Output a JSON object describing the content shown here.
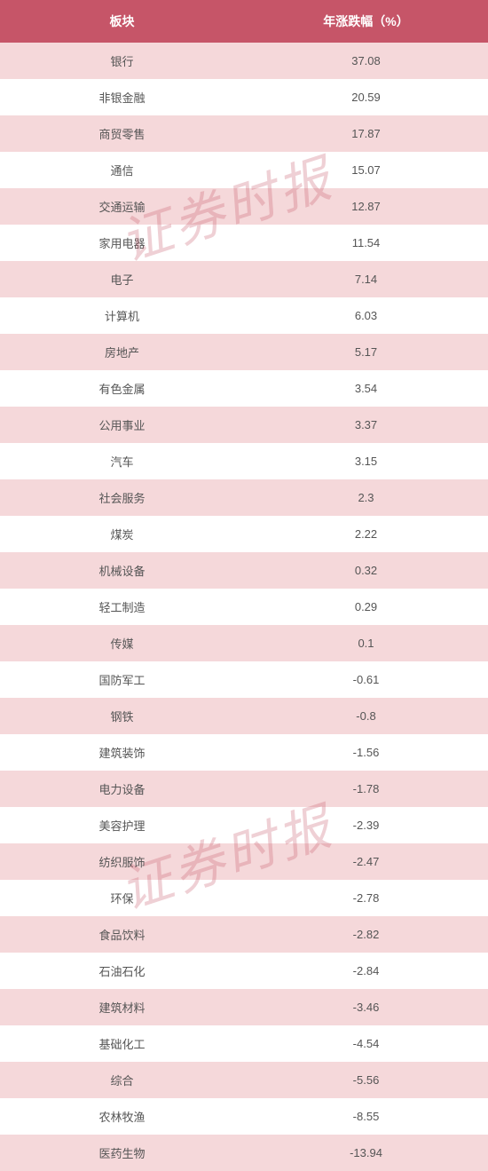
{
  "table": {
    "columns": [
      "板块",
      "年涨跌幅（%）"
    ],
    "rows": [
      [
        "银行",
        "37.08"
      ],
      [
        "非银金融",
        "20.59"
      ],
      [
        "商贸零售",
        "17.87"
      ],
      [
        "通信",
        "15.07"
      ],
      [
        "交通运输",
        "12.87"
      ],
      [
        "家用电器",
        "11.54"
      ],
      [
        "电子",
        "7.14"
      ],
      [
        "计算机",
        "6.03"
      ],
      [
        "房地产",
        "5.17"
      ],
      [
        "有色金属",
        "3.54"
      ],
      [
        "公用事业",
        "3.37"
      ],
      [
        "汽车",
        "3.15"
      ],
      [
        "社会服务",
        "2.3"
      ],
      [
        "煤炭",
        "2.22"
      ],
      [
        "机械设备",
        "0.32"
      ],
      [
        "轻工制造",
        "0.29"
      ],
      [
        "传媒",
        "0.1"
      ],
      [
        "国防军工",
        "-0.61"
      ],
      [
        "钢铁",
        "-0.8"
      ],
      [
        "建筑装饰",
        "-1.56"
      ],
      [
        "电力设备",
        "-1.78"
      ],
      [
        "美容护理",
        "-2.39"
      ],
      [
        "纺织服饰",
        "-2.47"
      ],
      [
        "环保",
        "-2.78"
      ],
      [
        "食品饮料",
        "-2.82"
      ],
      [
        "石油石化",
        "-2.84"
      ],
      [
        "建筑材料",
        "-3.46"
      ],
      [
        "基础化工",
        "-4.54"
      ],
      [
        "综合",
        "-5.56"
      ],
      [
        "农林牧渔",
        "-8.55"
      ],
      [
        "医药生物",
        "-13.94"
      ]
    ],
    "header_bg_color": "#c65568",
    "header_text_color": "#ffffff",
    "row_odd_bg_color": "#f5d8da",
    "row_even_bg_color": "#ffffff",
    "text_color": "#555555",
    "header_fontsize": 14,
    "cell_fontsize": 13
  },
  "watermark": {
    "text": "证券时报",
    "color": "rgba(198, 85, 104, 0.28)",
    "fontsize": 58,
    "rotation": -18
  }
}
